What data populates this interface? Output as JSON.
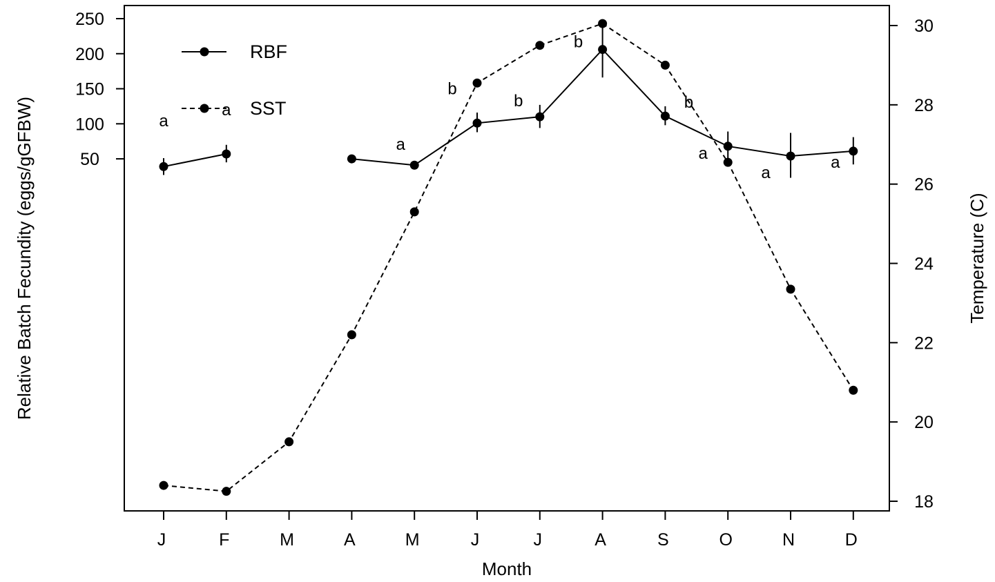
{
  "chart_data": {
    "type": "line",
    "title": "",
    "xlabel": "Month",
    "ylabel": "Relative Batch Fecundity (eggs/gGFBW)",
    "y2label": "Temperature (C)",
    "categories": [
      "J",
      "F",
      "M",
      "A",
      "M",
      "J",
      "J",
      "A",
      "S",
      "O",
      "N",
      "D"
    ],
    "ylim": [
      20,
      250
    ],
    "yticks": [
      "50",
      "100",
      "150",
      "200",
      "250"
    ],
    "y2lim": [
      18,
      30
    ],
    "y2ticks": [
      "18",
      "20",
      "22",
      "24",
      "26",
      "28",
      "30"
    ],
    "legend": {
      "placement": "top-left",
      "entries": [
        {
          "label": "RBF",
          "line": "solid"
        },
        {
          "label": "SST",
          "line": "dashed"
        }
      ]
    },
    "series": [
      {
        "name": "RBF",
        "axis": "left",
        "line": "solid",
        "values": [
          39,
          57,
          null,
          50,
          41,
          101,
          110,
          206,
          111,
          68,
          54,
          61
        ],
        "error_low": [
          27,
          45,
          null,
          null,
          36,
          88,
          94,
          166,
          98,
          48,
          23,
          42
        ],
        "error_high": [
          51,
          70,
          null,
          null,
          46,
          116,
          127,
          248,
          125,
          89,
          87,
          81
        ],
        "significance": [
          "a",
          "a",
          "",
          "",
          "a",
          "b",
          "b",
          "b",
          "b",
          "a",
          "a",
          "a"
        ]
      },
      {
        "name": "SST",
        "axis": "right",
        "line": "dashed",
        "values": [
          18.4,
          18.25,
          19.5,
          22.2,
          25.3,
          28.55,
          29.5,
          30.05,
          29.0,
          26.55,
          23.35,
          20.8
        ]
      }
    ]
  }
}
